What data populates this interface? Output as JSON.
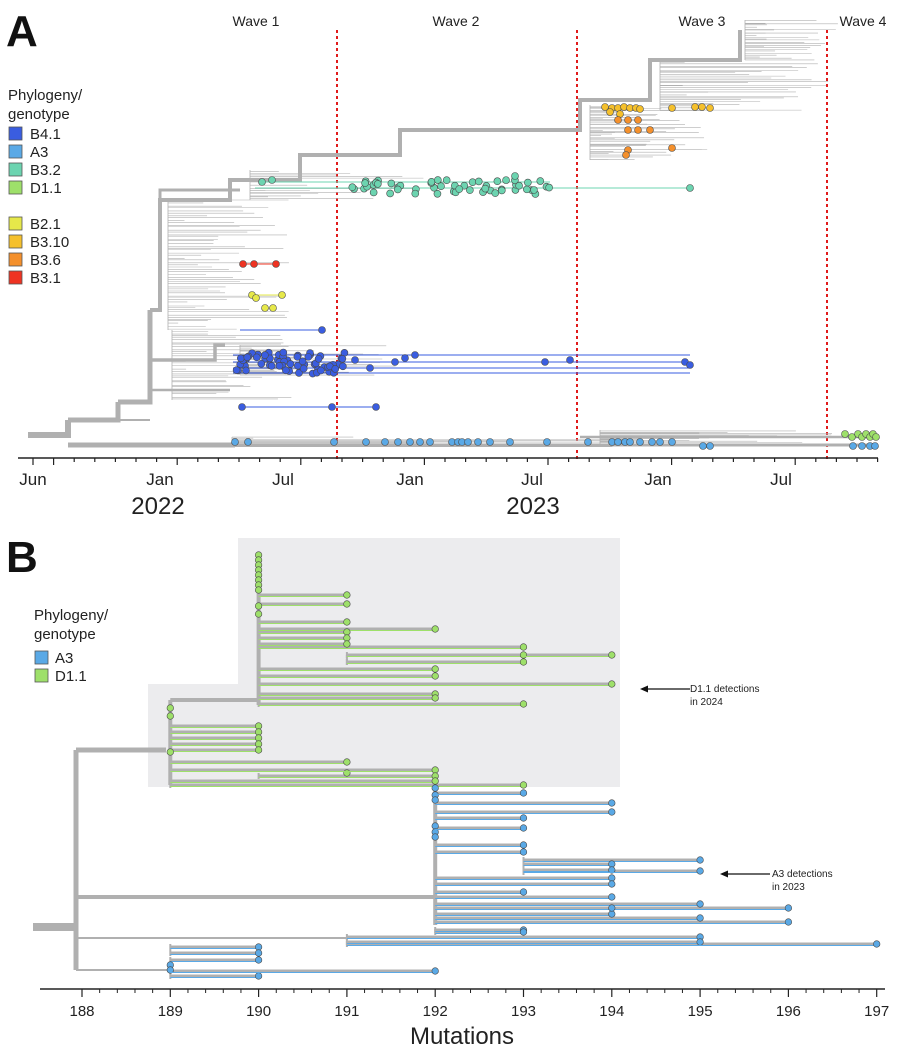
{
  "panel_a": {
    "letter": "A",
    "legend_title": [
      "Phylogeny/",
      "genotype"
    ],
    "legend": [
      {
        "label": "B4.1",
        "color": "#3a5de0"
      },
      {
        "label": "A3",
        "color": "#5aa9e6"
      },
      {
        "label": "B3.2",
        "color": "#6cd4b0"
      },
      {
        "label": "D1.1",
        "color": "#9ee06a"
      },
      {
        "label": "B2.1",
        "color": "#e6e84a"
      },
      {
        "label": "B3.10",
        "color": "#f5c02c"
      },
      {
        "label": "B3.6",
        "color": "#f4902c"
      },
      {
        "label": "B3.1",
        "color": "#ee3322"
      }
    ],
    "waves": [
      "Wave 1",
      "Wave 2",
      "Wave 3",
      "Wave 4"
    ],
    "month_labels": [
      "Jun",
      "Jan",
      "Jul",
      "Jan",
      "Jul",
      "Jan",
      "Jul"
    ],
    "year_labels": [
      "2022",
      "2023"
    ]
  },
  "panel_b": {
    "letter": "B",
    "legend_title": [
      "Phylogeny/",
      "genotype"
    ],
    "legend": [
      {
        "label": "A3",
        "color": "#5aa9e6"
      },
      {
        "label": "D1.1",
        "color": "#9ee06a"
      }
    ],
    "annotation_d11": [
      "D1.1 detections",
      "in 2024"
    ],
    "annotation_a3": [
      "A3 detections",
      "in 2023"
    ]
  },
  "chart_data": [
    {
      "type": "scatter",
      "title": "",
      "xlabel": "",
      "ylabel": "",
      "description_series": "time-scaled phylogeny, tips colored by genotype",
      "x_ticks": [
        "Jun",
        "Jan",
        "Jul",
        "Jan",
        "Jul",
        "Jan",
        "Jul"
      ],
      "x_years": [
        "2022",
        "2023"
      ],
      "wave_boundaries": [
        "Wave 1",
        "Wave 2",
        "Wave 3",
        "Wave 4"
      ],
      "series": [
        {
          "name": "B4.1",
          "color": "#3a5de0"
        },
        {
          "name": "A3",
          "color": "#5aa9e6"
        },
        {
          "name": "B3.2",
          "color": "#6cd4b0"
        },
        {
          "name": "D1.1",
          "color": "#9ee06a"
        },
        {
          "name": "B2.1",
          "color": "#e6e84a"
        },
        {
          "name": "B3.10",
          "color": "#f5c02c"
        },
        {
          "name": "B3.6",
          "color": "#f4902c"
        },
        {
          "name": "B3.1",
          "color": "#ee3322"
        }
      ]
    },
    {
      "type": "scatter",
      "title": "",
      "xlabel": "Mutations",
      "ylabel": "",
      "x_ticks": [
        188,
        189,
        190,
        191,
        192,
        193,
        194,
        195,
        196,
        197
      ],
      "xlim": [
        187.6,
        197.1
      ],
      "series": [
        {
          "name": "D1.1",
          "color": "#9ee06a",
          "tip_mutations": [
            190,
            190,
            190,
            190,
            190,
            190,
            190,
            190,
            191,
            191,
            190,
            190,
            191,
            192,
            191,
            191,
            191,
            193,
            193,
            193,
            194,
            192,
            192,
            194,
            192,
            192,
            193,
            193,
            189,
            189,
            190,
            190,
            190,
            190,
            190,
            191,
            191,
            192,
            192,
            193,
            192
          ]
        },
        {
          "name": "A3",
          "color": "#5aa9e6",
          "tip_mutations": [
            192,
            192,
            193,
            192,
            194,
            194,
            192,
            192,
            193,
            193,
            192,
            193,
            193,
            195,
            194,
            194,
            195,
            194,
            194,
            193,
            194,
            195,
            196,
            194,
            194,
            195,
            196,
            193,
            193,
            195,
            195,
            197,
            190,
            190,
            190,
            189,
            189,
            190,
            192
          ]
        }
      ]
    }
  ]
}
